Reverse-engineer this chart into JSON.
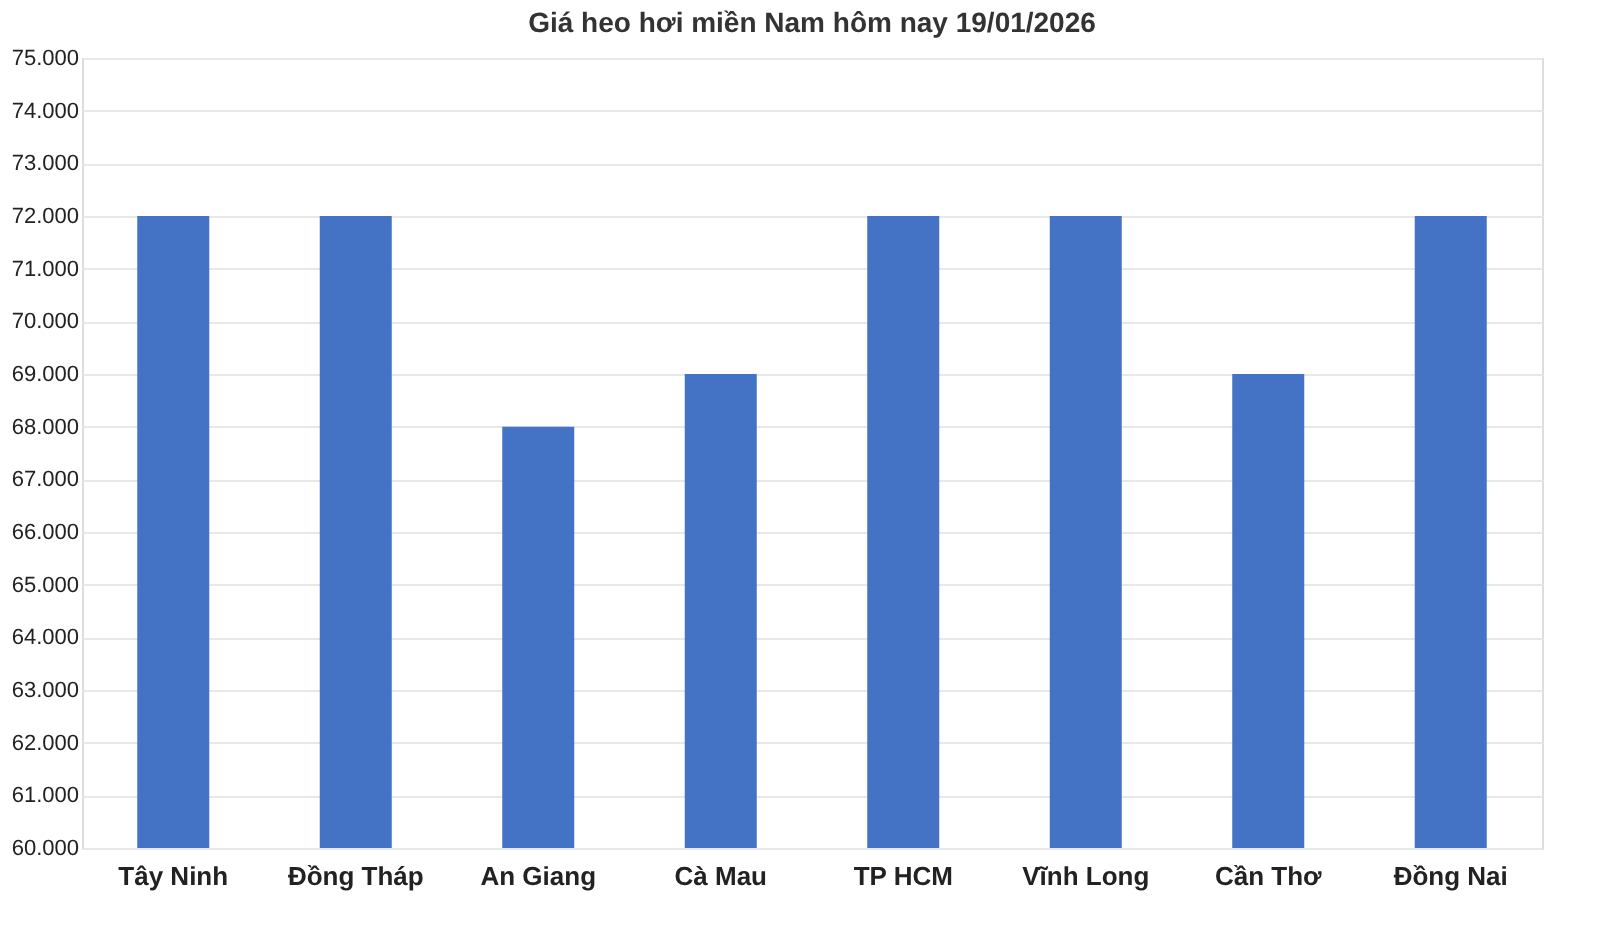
{
  "chart_data": {
    "type": "bar",
    "title": "Giá heo hơi miền Nam hôm nay 19/01/2026",
    "categories": [
      "Tây Ninh",
      "Đồng Tháp",
      "An Giang",
      "Cà Mau",
      "TP HCM",
      "Vĩnh Long",
      "Cần Thơ",
      "Đồng Nai"
    ],
    "values": [
      72000,
      72000,
      68000,
      69000,
      72000,
      72000,
      69000,
      72000
    ],
    "color": "#4472c4",
    "ylim": [
      60000,
      75000
    ],
    "yticks": [
      {
        "value": 60000,
        "label": "60.000"
      },
      {
        "value": 61000,
        "label": "61.000"
      },
      {
        "value": 62000,
        "label": "62.000"
      },
      {
        "value": 63000,
        "label": "63.000"
      },
      {
        "value": 64000,
        "label": "64.000"
      },
      {
        "value": 65000,
        "label": "65.000"
      },
      {
        "value": 66000,
        "label": "66.000"
      },
      {
        "value": 67000,
        "label": "67.000"
      },
      {
        "value": 68000,
        "label": "68.000"
      },
      {
        "value": 69000,
        "label": "69.000"
      },
      {
        "value": 70000,
        "label": "70.000"
      },
      {
        "value": 71000,
        "label": "71.000"
      },
      {
        "value": 72000,
        "label": "72.000"
      },
      {
        "value": 73000,
        "label": "73.000"
      },
      {
        "value": 74000,
        "label": "74.000"
      },
      {
        "value": 75000,
        "label": "75.000"
      }
    ],
    "grid": "y"
  }
}
